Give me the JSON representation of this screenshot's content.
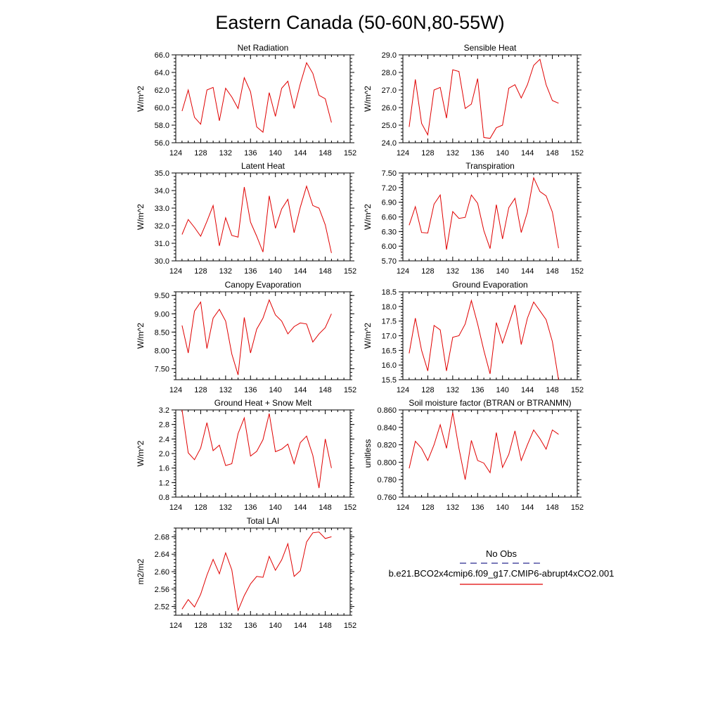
{
  "title": "Eastern Canada (50-60N,80-55W)",
  "legend": {
    "obs_label": "No Obs",
    "obs_color": "#2b2b8f",
    "model_label": "b.e21.BCO2x4cmip6.f09_g17.CMIP6-abrupt4xCO2.001",
    "model_color": "#e00000"
  },
  "chart_data": [
    {
      "type": "line",
      "title": "Net Radiation",
      "ylabel": "W/m^2",
      "xlim": [
        124,
        152
      ],
      "xticks": [
        "124",
        "128",
        "132",
        "136",
        "140",
        "144",
        "148",
        "152"
      ],
      "ylim": [
        56.0,
        66.0
      ],
      "yticks": [
        "56.0",
        "58.0",
        "60.0",
        "62.0",
        "64.0",
        "66.0"
      ],
      "x": [
        125,
        126,
        127,
        128,
        129,
        130,
        131,
        132,
        133,
        134,
        135,
        136,
        137,
        138,
        139,
        140,
        141,
        142,
        143,
        144,
        145,
        146,
        147,
        148,
        149
      ],
      "series": [
        {
          "values": [
            59.6,
            62.0,
            58.9,
            58.1,
            62.0,
            62.3,
            58.5,
            62.2,
            61.2,
            59.9,
            63.4,
            61.8,
            57.8,
            57.2,
            61.7,
            59.0,
            62.2,
            63.0,
            59.9,
            62.7,
            65.1,
            63.9,
            61.4,
            61.0,
            58.3
          ]
        }
      ]
    },
    {
      "type": "line",
      "title": "Sensible Heat",
      "ylabel": "W/m^2",
      "xlim": [
        124,
        152
      ],
      "xticks": [
        "124",
        "128",
        "132",
        "136",
        "140",
        "144",
        "148",
        "152"
      ],
      "ylim": [
        24.0,
        29.0
      ],
      "yticks": [
        "24.0",
        "25.0",
        "26.0",
        "27.0",
        "28.0",
        "29.0"
      ],
      "x": [
        125,
        126,
        127,
        128,
        129,
        130,
        131,
        132,
        133,
        134,
        135,
        136,
        137,
        138,
        139,
        140,
        141,
        142,
        143,
        144,
        145,
        146,
        147,
        148,
        149
      ],
      "series": [
        {
          "values": [
            24.9,
            27.6,
            25.1,
            24.45,
            27.0,
            27.15,
            25.4,
            28.15,
            28.05,
            25.95,
            26.2,
            27.65,
            24.3,
            24.25,
            24.85,
            25.0,
            27.1,
            27.3,
            26.55,
            27.3,
            28.4,
            28.75,
            27.3,
            26.4,
            26.25
          ]
        }
      ]
    },
    {
      "type": "line",
      "title": "Latent Heat",
      "ylabel": "W/m^2",
      "xlim": [
        124,
        152
      ],
      "xticks": [
        "124",
        "128",
        "132",
        "136",
        "140",
        "144",
        "148",
        "152"
      ],
      "ylim": [
        30.0,
        35.0
      ],
      "yticks": [
        "30.0",
        "31.0",
        "32.0",
        "33.0",
        "34.0",
        "35.0"
      ],
      "x": [
        125,
        126,
        127,
        128,
        129,
        130,
        131,
        132,
        133,
        134,
        135,
        136,
        137,
        138,
        139,
        140,
        141,
        142,
        143,
        144,
        145,
        146,
        147,
        148,
        149
      ],
      "series": [
        {
          "values": [
            31.5,
            32.35,
            31.9,
            31.4,
            32.25,
            33.15,
            30.85,
            32.45,
            31.45,
            31.35,
            34.2,
            32.2,
            31.4,
            30.5,
            33.7,
            31.85,
            32.95,
            33.5,
            31.6,
            33.05,
            34.25,
            33.15,
            33.0,
            32.05,
            30.45
          ]
        }
      ]
    },
    {
      "type": "line",
      "title": "Transpiration",
      "ylabel": "W/m^2",
      "xlim": [
        124,
        152
      ],
      "xticks": [
        "124",
        "128",
        "132",
        "136",
        "140",
        "144",
        "148",
        "152"
      ],
      "ylim": [
        5.7,
        7.5
      ],
      "yticks": [
        "5.70",
        "6.00",
        "6.30",
        "6.60",
        "6.90",
        "7.20",
        "7.50"
      ],
      "x": [
        125,
        126,
        127,
        128,
        129,
        130,
        131,
        132,
        133,
        134,
        135,
        136,
        137,
        138,
        139,
        140,
        141,
        142,
        143,
        144,
        145,
        146,
        147,
        148,
        149
      ],
      "series": [
        {
          "values": [
            6.43,
            6.81,
            6.28,
            6.27,
            6.86,
            7.05,
            5.93,
            6.71,
            6.57,
            6.59,
            7.05,
            6.88,
            6.32,
            5.95,
            6.85,
            6.15,
            6.79,
            6.98,
            6.28,
            6.7,
            7.4,
            7.12,
            7.03,
            6.7,
            5.96
          ]
        }
      ]
    },
    {
      "type": "line",
      "title": "Canopy Evaporation",
      "ylabel": "W/m^2",
      "xlim": [
        124,
        152
      ],
      "xticks": [
        "124",
        "128",
        "132",
        "136",
        "140",
        "144",
        "148",
        "152"
      ],
      "ylim": [
        7.2,
        9.6
      ],
      "yticks": [
        "7.50",
        "8.00",
        "8.50",
        "9.00",
        "9.50"
      ],
      "x": [
        125,
        126,
        127,
        128,
        129,
        130,
        131,
        132,
        133,
        134,
        135,
        136,
        137,
        138,
        139,
        140,
        141,
        142,
        143,
        144,
        145,
        146,
        147,
        148,
        149
      ],
      "series": [
        {
          "values": [
            8.68,
            7.93,
            9.07,
            9.32,
            8.05,
            8.88,
            9.12,
            8.8,
            7.9,
            7.33,
            8.9,
            7.93,
            8.58,
            8.88,
            9.38,
            8.97,
            8.8,
            8.45,
            8.65,
            8.75,
            8.72,
            8.23,
            8.45,
            8.62,
            9.0
          ]
        }
      ]
    },
    {
      "type": "line",
      "title": "Ground Evaporation",
      "ylabel": "W/m^2",
      "xlim": [
        124,
        152
      ],
      "xticks": [
        "124",
        "128",
        "132",
        "136",
        "140",
        "144",
        "148",
        "152"
      ],
      "ylim": [
        15.5,
        18.5
      ],
      "yticks": [
        "15.5",
        "16.0",
        "16.5",
        "17.0",
        "17.5",
        "18.0",
        "18.5"
      ],
      "x": [
        125,
        126,
        127,
        128,
        129,
        130,
        131,
        132,
        133,
        134,
        135,
        136,
        137,
        138,
        139,
        140,
        141,
        142,
        143,
        144,
        145,
        146,
        147,
        148,
        149
      ],
      "series": [
        {
          "values": [
            16.4,
            17.6,
            16.5,
            15.8,
            17.35,
            17.2,
            15.8,
            16.95,
            17.0,
            17.4,
            18.2,
            17.4,
            16.5,
            15.7,
            17.45,
            16.75,
            17.4,
            18.05,
            16.7,
            17.6,
            18.15,
            17.85,
            17.55,
            16.8,
            15.5
          ]
        }
      ]
    },
    {
      "type": "line",
      "title": "Ground Heat + Snow Melt",
      "ylabel": "W/m^2",
      "xlim": [
        124,
        152
      ],
      "xticks": [
        "124",
        "128",
        "132",
        "136",
        "140",
        "144",
        "148",
        "152"
      ],
      "ylim": [
        0.8,
        3.2
      ],
      "yticks": [
        "0.8",
        "1.2",
        "1.6",
        "2.0",
        "2.4",
        "2.8",
        "3.2"
      ],
      "x": [
        125,
        126,
        127,
        128,
        129,
        130,
        131,
        132,
        133,
        134,
        135,
        136,
        137,
        138,
        139,
        140,
        141,
        142,
        143,
        144,
        145,
        146,
        147,
        148,
        149
      ],
      "series": [
        {
          "values": [
            3.2,
            2.02,
            1.83,
            2.15,
            2.85,
            2.08,
            2.23,
            1.67,
            1.72,
            2.55,
            2.98,
            1.93,
            2.06,
            2.38,
            3.1,
            2.05,
            2.12,
            2.26,
            1.72,
            2.3,
            2.48,
            1.95,
            1.05,
            2.4,
            1.6
          ]
        }
      ]
    },
    {
      "type": "line",
      "title": "Soil moisture factor (BTRAN or BTRANMN)",
      "ylabel": "unitless",
      "xlim": [
        124,
        152
      ],
      "xticks": [
        "124",
        "128",
        "132",
        "136",
        "140",
        "144",
        "148",
        "152"
      ],
      "ylim": [
        0.76,
        0.86
      ],
      "yticks": [
        "0.760",
        "0.780",
        "0.800",
        "0.820",
        "0.840",
        "0.860"
      ],
      "x": [
        125,
        126,
        127,
        128,
        129,
        130,
        131,
        132,
        133,
        134,
        135,
        136,
        137,
        138,
        139,
        140,
        141,
        142,
        143,
        144,
        145,
        146,
        147,
        148,
        149
      ],
      "series": [
        {
          "values": [
            0.793,
            0.824,
            0.816,
            0.802,
            0.82,
            0.843,
            0.816,
            0.857,
            0.816,
            0.78,
            0.825,
            0.802,
            0.799,
            0.788,
            0.834,
            0.794,
            0.809,
            0.836,
            0.802,
            0.82,
            0.837,
            0.827,
            0.815,
            0.837,
            0.832
          ]
        }
      ]
    },
    {
      "type": "line",
      "title": "Total LAI",
      "ylabel": "m2/m2",
      "xlim": [
        124,
        152
      ],
      "xticks": [
        "124",
        "128",
        "132",
        "136",
        "140",
        "144",
        "148",
        "152"
      ],
      "ylim": [
        2.5,
        2.7
      ],
      "yticks": [
        "2.52",
        "2.56",
        "2.60",
        "2.64",
        "2.68"
      ],
      "x": [
        125,
        126,
        127,
        128,
        129,
        130,
        131,
        132,
        133,
        134,
        135,
        136,
        137,
        138,
        139,
        140,
        141,
        142,
        143,
        144,
        145,
        146,
        147,
        148,
        149
      ],
      "series": [
        {
          "values": [
            2.514,
            2.536,
            2.519,
            2.548,
            2.592,
            2.628,
            2.595,
            2.643,
            2.604,
            2.511,
            2.545,
            2.572,
            2.589,
            2.587,
            2.635,
            2.603,
            2.627,
            2.664,
            2.589,
            2.602,
            2.668,
            2.689,
            2.691,
            2.676,
            2.68
          ]
        }
      ]
    }
  ]
}
